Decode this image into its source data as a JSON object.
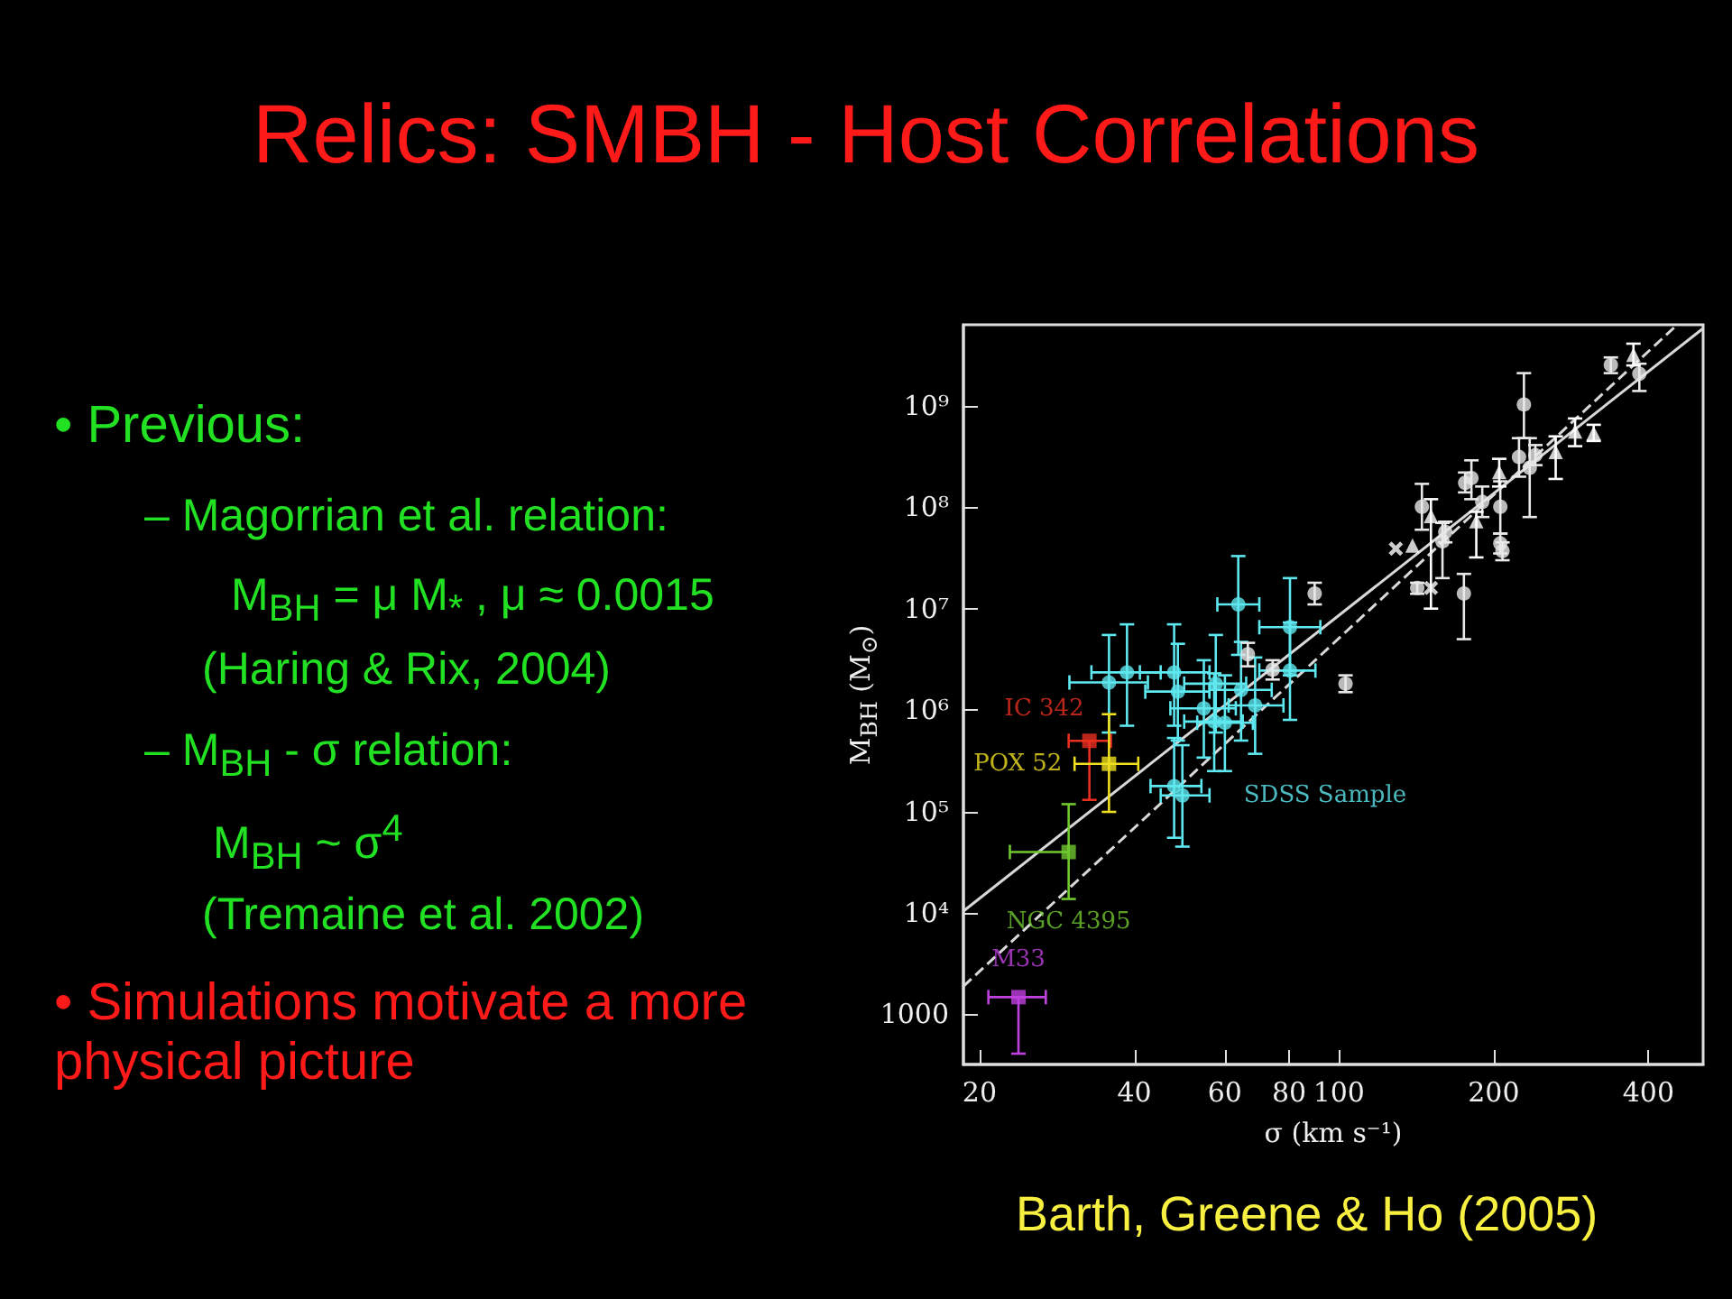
{
  "chart_data": {
    "type": "scatter",
    "title": "Relics: SMBH - Host Correlations",
    "xlabel": "σ (km s⁻¹)",
    "ylabel": "M$_{BH}$ (M$_{⊙}$)",
    "annotations": [
      "• Previous:",
      "– Magorrian et al. relation:",
      "M$_{BH}$ = μ M$_{*}$ , μ ≈ 0.0015",
      "(Haring & Rix, 2004)",
      "– M$_{BH}$ - σ relation:",
      "M$_{BH}$ ~ σ$^{4}$",
      "(Tremaine et al. 2002)",
      "• Simulations motivate a more physical picture",
      "Barth, Greene & Ho (2005)"
    ],
    "log": "xy",
    "grid": false,
    "legend": false,
    "xlim": [
      18.6,
      511
    ],
    "ylim": [
      320,
      6300000000
    ],
    "xticks": [
      20,
      40,
      60,
      80,
      100,
      200,
      400
    ],
    "yticks": [
      1000,
      {
        "value": 10000,
        "label": "10⁴"
      },
      {
        "value": 100000,
        "label": "10⁵"
      },
      {
        "value": 1000000,
        "label": "10⁶"
      },
      {
        "value": 10000000,
        "label": "10⁷"
      },
      {
        "value": 100000000,
        "label": "10⁸"
      },
      {
        "value": 1000000000,
        "label": "10⁹"
      }
    ],
    "series": [
      {
        "name": "SDSS Sample",
        "color": "#5ee8f0",
        "marker": "circle",
        "x": [
          35.7,
          38.7,
          47.8,
          48.6,
          57.6,
          63.7,
          64.5,
          54.6,
          68.7,
          80.3,
          80.3,
          57.2,
          60.0,
          47.8,
          49.6
        ],
        "values": [
          1870000,
          2350000,
          2350000,
          1520000,
          1820000,
          11000000,
          1580000,
          1040000,
          1110000,
          6560000,
          2450000,
          770000,
          750000,
          178000,
          144000
        ],
        "errors": [
          [
            600000,
            5500000
          ],
          [
            700000,
            7000000
          ],
          [
            700000,
            7000000
          ],
          [
            500000,
            4500000
          ],
          [
            600000,
            5500000
          ],
          [
            3500000,
            33000000
          ],
          [
            500000,
            4700000
          ],
          [
            340000,
            3100000
          ],
          [
            370000,
            3300000
          ],
          [
            2200000,
            20000000
          ],
          [
            800000,
            7300000
          ],
          [
            250000,
            2300000
          ],
          [
            250000,
            2200000
          ],
          [
            55000,
            530000
          ],
          [
            45000,
            450000
          ]
        ],
        "xerrors": [
          [
            29.9,
            42.5
          ],
          [
            33,
            45
          ],
          [
            41,
            56
          ],
          [
            42,
            56
          ],
          [
            50,
            66
          ],
          [
            58,
            70
          ],
          [
            56,
            74
          ],
          [
            47,
            63
          ],
          [
            61,
            78
          ],
          [
            70,
            92
          ],
          [
            70,
            90
          ],
          [
            50,
            65
          ],
          [
            53,
            68
          ],
          [
            43,
            54
          ],
          [
            45,
            56
          ]
        ]
      },
      {
        "name": "IC 342",
        "color": "#e83020",
        "marker": "square",
        "x": [
          32.7
        ],
        "values": [
          497000
        ],
        "errors": [
          [
            130000,
            497000
          ]
        ],
        "xerrors": [
          [
            29.8,
            36.0
          ]
        ]
      },
      {
        "name": "POX 52",
        "color": "#f0e020",
        "marker": "square",
        "x": [
          35.7
        ],
        "values": [
          295000
        ],
        "errors": [
          [
            99000,
            910000
          ]
        ],
        "xerrors": [
          [
            30.6,
            40.7
          ]
        ]
      },
      {
        "name": "NGC 4395",
        "color": "#70c830",
        "marker": "square",
        "x": [
          29.8
        ],
        "values": [
          39800
        ],
        "errors": [
          [
            13700,
            118000
          ]
        ],
        "xerrors": [
          [
            22.9,
            29.8
          ]
        ]
      },
      {
        "name": "M33",
        "color": "#c040e0",
        "marker": "square",
        "x": [
          23.8
        ],
        "values": [
          1476
        ],
        "errors": [
          [
            409,
            1476
          ]
        ],
        "xerrors": [
          [
            20.8,
            26.9
          ]
        ]
      },
      {
        "color": "#e8e8e8",
        "marker": "circle",
        "x": [
          338,
          384,
          229,
          224,
          235,
          241,
          181,
          176,
          145,
          190,
          206,
          161,
          159,
          206,
          208,
          142,
          175,
          89.7,
          74.3,
          103,
          66.5
        ],
        "values": [
          2530000000,
          2070000000,
          1030000000,
          313000000,
          245000000,
          326000000,
          194000000,
          174000000,
          101000000,
          113000000,
          101000000,
          57000000,
          46000000,
          44000000,
          37000000,
          16000000,
          14100000,
          14100000,
          2500000,
          1820000,
          3550000
        ],
        "errors": [
          [
            2100000000,
            3000000000
          ],
          [
            1400000000,
            2600000000
          ],
          [
            480000000,
            2100000000
          ],
          [
            200000000,
            480000000
          ],
          [
            80000000,
            480000000
          ],
          [
            260000000,
            410000000
          ],
          [
            120000000,
            290000000
          ],
          [
            140000000,
            220000000
          ],
          [
            60000000,
            170000000
          ],
          [
            80000000,
            160000000
          ],
          [
            55000000,
            180000000
          ],
          [
            45000000,
            72000000
          ],
          [
            20000000,
            70000000
          ],
          [
            35000000,
            55000000
          ],
          [
            30000000,
            45000000
          ],
          [
            14000000,
            18000000
          ],
          [
            5000000,
            22000000
          ],
          [
            11000000,
            18000000
          ],
          [
            2000000,
            3100000
          ],
          [
            1500000,
            2200000
          ],
          [
            2700000,
            4600000
          ]
        ]
      },
      {
        "color": "#ffffff",
        "marker": "triangle",
        "x": [
          374,
          288,
          313,
          264,
          205,
          151,
          185,
          139
        ],
        "values": [
          3190000000,
          560000000,
          540000000,
          350000000,
          222000000,
          82000000,
          73000000,
          42000000
        ],
        "errors": [
          [
            2500000000,
            4100000000
          ],
          [
            400000000,
            750000000
          ],
          [
            450000000,
            650000000
          ],
          [
            190000000,
            500000000
          ],
          [
            160000000,
            300000000
          ],
          [
            10000000,
            120000000
          ],
          [
            32000000,
            90000000
          ],
          null
        ]
      },
      {
        "color": "#ffffff",
        "marker": "cross",
        "x": [
          129,
          151
        ],
        "values": [
          39000000,
          16000000
        ]
      },
      {
        "type": "line",
        "color": "#d8d8d8",
        "line_style": "solid",
        "x": [
          18.6,
          511
        ],
        "values": [
          10400,
          5800000000
        ]
      },
      {
        "type": "line",
        "color": "#d8d8d8",
        "line_style": "dashed",
        "x": [
          18.6,
          455
        ],
        "values": [
          1890,
          6300000000
        ]
      }
    ]
  }
}
